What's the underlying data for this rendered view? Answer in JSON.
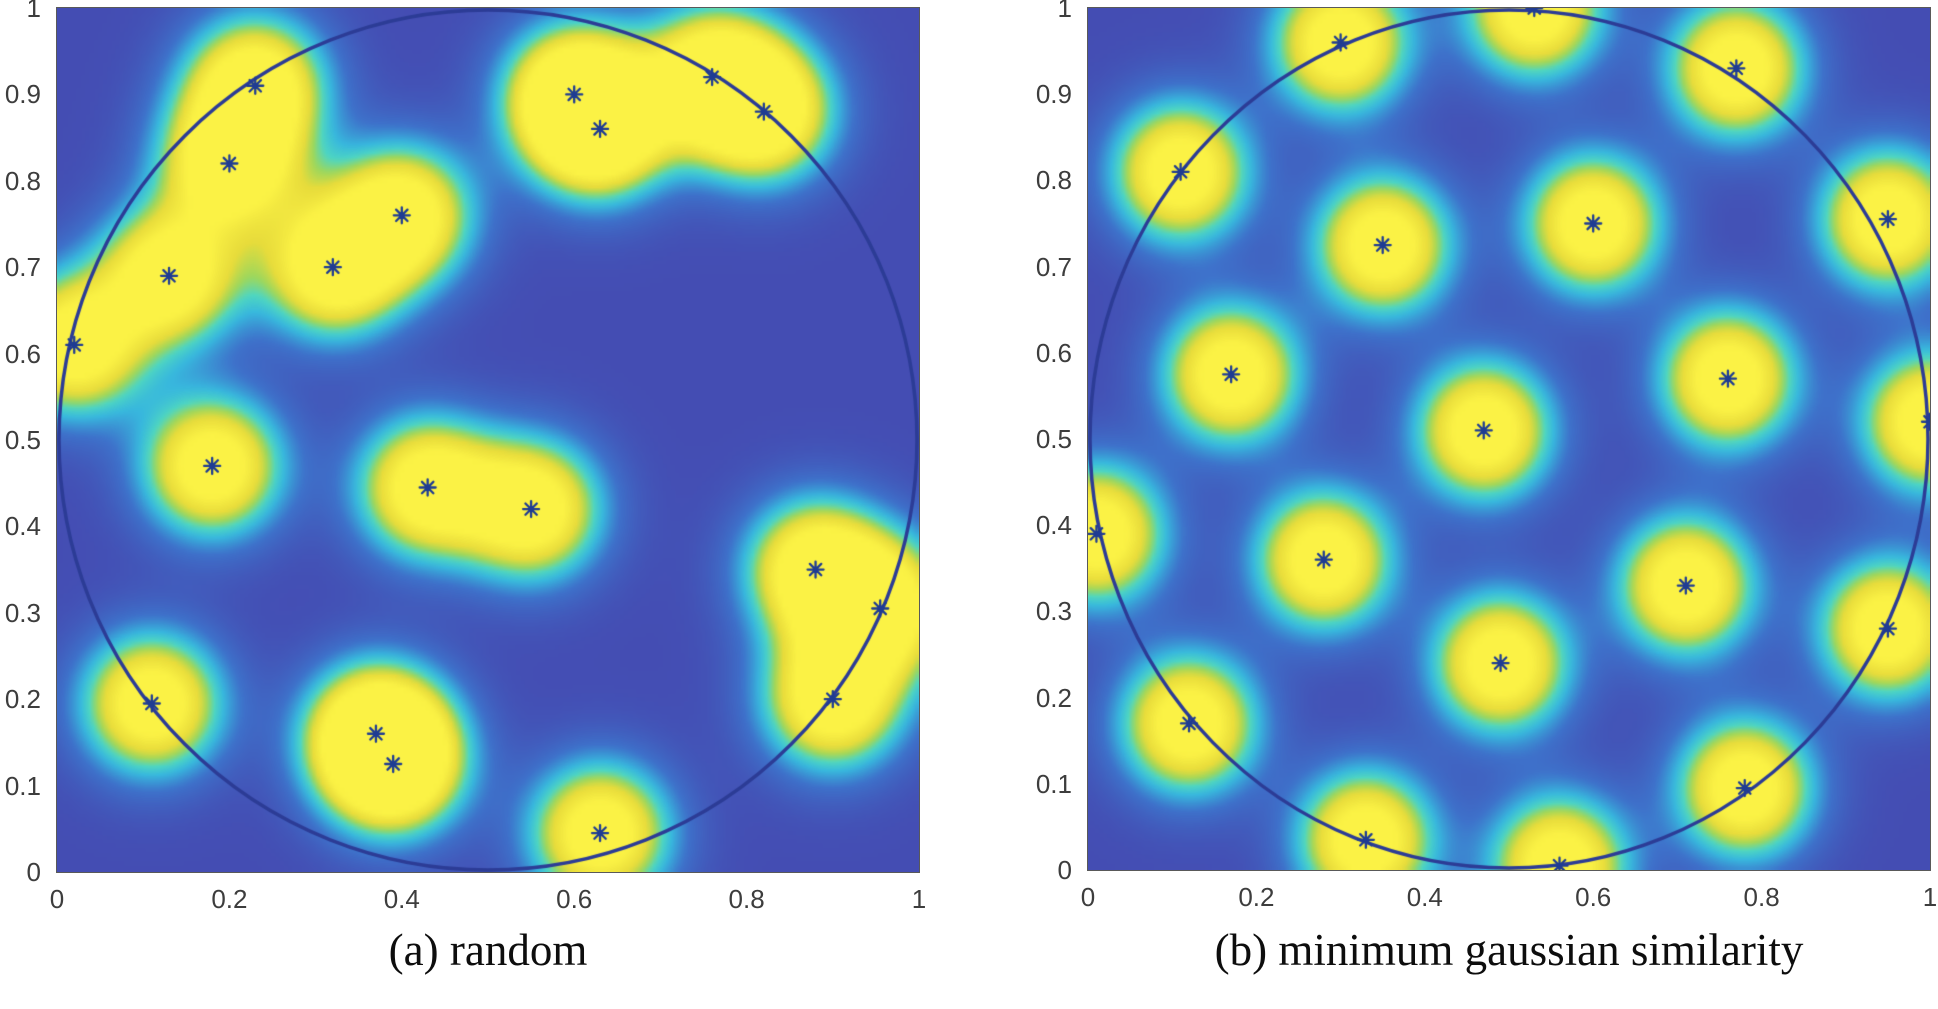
{
  "figure": {
    "background": "#ffffff"
  },
  "chart_data": [
    {
      "type": "scatter",
      "overlay": "gaussian-density-heatmap",
      "caption": "(a) random",
      "title": "",
      "xlabel": "",
      "ylabel": "",
      "xlim": [
        0,
        1
      ],
      "ylim": [
        0,
        1
      ],
      "grid": false,
      "xticks": [
        "0",
        "0.2",
        "0.4",
        "0.6",
        "0.8",
        "1"
      ],
      "yticks": [
        "0",
        "0.1",
        "0.2",
        "0.3",
        "0.4",
        "0.5",
        "0.6",
        "0.7",
        "0.8",
        "0.9",
        "1"
      ],
      "circle": {
        "cx": 0.5,
        "cy": 0.5,
        "r": 0.5
      },
      "points": [
        [
          0.23,
          0.91
        ],
        [
          0.2,
          0.82
        ],
        [
          0.4,
          0.76
        ],
        [
          0.13,
          0.69
        ],
        [
          0.32,
          0.7
        ],
        [
          0.02,
          0.61
        ],
        [
          0.6,
          0.9
        ],
        [
          0.63,
          0.86
        ],
        [
          0.76,
          0.92
        ],
        [
          0.82,
          0.88
        ],
        [
          0.18,
          0.47
        ],
        [
          0.43,
          0.445
        ],
        [
          0.55,
          0.42
        ],
        [
          0.88,
          0.35
        ],
        [
          0.955,
          0.305
        ],
        [
          0.9,
          0.2
        ],
        [
          0.11,
          0.195
        ],
        [
          0.37,
          0.16
        ],
        [
          0.39,
          0.125
        ],
        [
          0.63,
          0.045
        ]
      ]
    },
    {
      "type": "scatter",
      "overlay": "gaussian-density-heatmap",
      "caption": "(b) minimum gaussian similarity",
      "title": "",
      "xlabel": "",
      "ylabel": "",
      "xlim": [
        0,
        1
      ],
      "ylim": [
        0,
        1
      ],
      "grid": false,
      "xticks": [
        "0",
        "0.2",
        "0.4",
        "0.6",
        "0.8",
        "1"
      ],
      "yticks": [
        "0",
        "0.1",
        "0.2",
        "0.3",
        "0.4",
        "0.5",
        "0.6",
        "0.7",
        "0.8",
        "0.9",
        "1"
      ],
      "circle": {
        "cx": 0.5,
        "cy": 0.5,
        "r": 0.5
      },
      "points": [
        [
          0.53,
          1.0
        ],
        [
          0.3,
          0.96
        ],
        [
          0.77,
          0.93
        ],
        [
          0.11,
          0.81
        ],
        [
          0.35,
          0.725
        ],
        [
          0.6,
          0.75
        ],
        [
          0.95,
          0.755
        ],
        [
          0.17,
          0.575
        ],
        [
          0.47,
          0.51
        ],
        [
          0.76,
          0.57
        ],
        [
          1.0,
          0.52
        ],
        [
          0.01,
          0.39
        ],
        [
          0.28,
          0.36
        ],
        [
          0.71,
          0.33
        ],
        [
          0.95,
          0.28
        ],
        [
          0.49,
          0.24
        ],
        [
          0.12,
          0.17
        ],
        [
          0.33,
          0.035
        ],
        [
          0.56,
          0.005
        ],
        [
          0.78,
          0.095
        ]
      ]
    }
  ],
  "style": {
    "colormap_name": "parula-like",
    "colormap_stops": [
      {
        "t": 0.0,
        "color": "#444db3"
      },
      {
        "t": 0.22,
        "color": "#3e72cb"
      },
      {
        "t": 0.4,
        "color": "#38b8de"
      },
      {
        "t": 0.52,
        "color": "#4ed6c3"
      },
      {
        "t": 0.63,
        "color": "#9ed75c"
      },
      {
        "t": 0.76,
        "color": "#e8dc3b"
      },
      {
        "t": 1.0,
        "color": "#fbf245"
      }
    ],
    "kernel_sigma": 0.055,
    "kernel_gain": 1.25,
    "marker": "*",
    "marker_color": "#1f3c92",
    "circle_color": "#2c3c96",
    "tick_label_color": "#3d3d3d"
  }
}
